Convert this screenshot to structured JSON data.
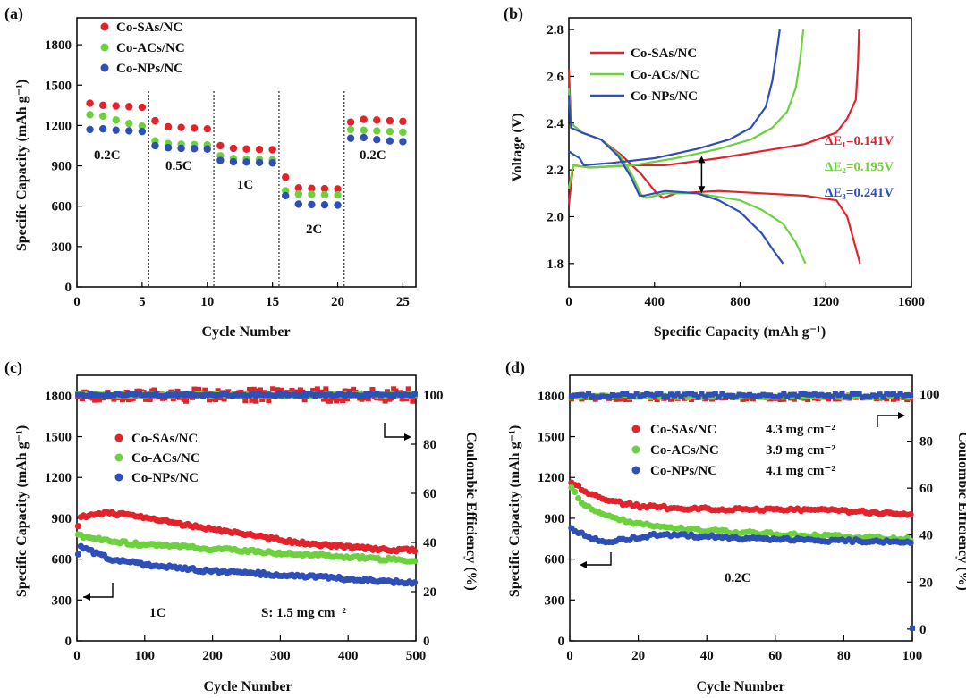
{
  "chart_data": [
    {
      "panel": "(a)",
      "type": "scatter",
      "xlabel": "Cycle Number",
      "ylabel": "Specific Capacity (mAh g⁻¹)",
      "xlim": [
        0,
        26
      ],
      "ylim": [
        0,
        2000
      ],
      "xticks": [
        0,
        5,
        10,
        15,
        20,
        25
      ],
      "yticks": [
        0,
        300,
        600,
        900,
        1200,
        1500,
        1800
      ],
      "x": [
        1,
        2,
        3,
        4,
        5,
        6,
        7,
        8,
        9,
        10,
        11,
        12,
        13,
        14,
        15,
        16,
        17,
        18,
        19,
        20,
        21,
        22,
        23,
        24,
        25
      ],
      "series": [
        {
          "name": "Co-SAs/NC",
          "color": "#e3232b",
          "values": [
            1365,
            1350,
            1345,
            1340,
            1335,
            1235,
            1190,
            1185,
            1180,
            1175,
            1050,
            1030,
            1025,
            1022,
            1020,
            815,
            735,
            732,
            730,
            728,
            1225,
            1245,
            1240,
            1235,
            1230
          ]
        },
        {
          "name": "Co-ACs/NC",
          "color": "#6dd13f",
          "values": [
            1280,
            1270,
            1240,
            1215,
            1195,
            1085,
            1065,
            1060,
            1058,
            1055,
            975,
            955,
            950,
            948,
            945,
            715,
            690,
            688,
            685,
            683,
            1170,
            1165,
            1160,
            1155,
            1150
          ]
        },
        {
          "name": "Co-NPs/NC",
          "color": "#2f4fb8",
          "values": [
            1170,
            1175,
            1165,
            1160,
            1155,
            1050,
            1035,
            1030,
            1028,
            1025,
            940,
            930,
            928,
            925,
            922,
            678,
            615,
            612,
            610,
            608,
            1105,
            1110,
            1095,
            1085,
            1080
          ]
        }
      ],
      "rate_labels": [
        "0.2C",
        "0.5C",
        "1C",
        "2C",
        "0.2C"
      ],
      "dividers": [
        5.5,
        10.5,
        15.5,
        20.5
      ]
    },
    {
      "panel": "(b)",
      "type": "line",
      "xlabel": "Specific Capacity (mAh g⁻¹)",
      "ylabel": "Voltage (V)",
      "xlim": [
        0,
        1600
      ],
      "ylim": [
        1.7,
        2.85
      ],
      "xticks": [
        0,
        400,
        800,
        1200,
        1600
      ],
      "yticks": [
        1.8,
        2.0,
        2.2,
        2.4,
        2.6,
        2.8
      ],
      "series": [
        {
          "name": "Co-SAs/NC",
          "color": "#e3232b",
          "discharge": [
            [
              0,
              2.63
            ],
            [
              10,
              2.4
            ],
            [
              60,
              2.36
            ],
            [
              150,
              2.33
            ],
            [
              250,
              2.26
            ],
            [
              340,
              2.18
            ],
            [
              410,
              2.1
            ],
            [
              440,
              2.08
            ],
            [
              500,
              2.1
            ],
            [
              700,
              2.11
            ],
            [
              900,
              2.1
            ],
            [
              1100,
              2.09
            ],
            [
              1250,
              2.07
            ],
            [
              1300,
              2.0
            ],
            [
              1330,
              1.9
            ],
            [
              1360,
              1.8
            ]
          ],
          "charge": [
            [
              0,
              2.05
            ],
            [
              20,
              2.22
            ],
            [
              100,
              2.21
            ],
            [
              300,
              2.22
            ],
            [
              450,
              2.22
            ],
            [
              700,
              2.25
            ],
            [
              900,
              2.28
            ],
            [
              1100,
              2.31
            ],
            [
              1250,
              2.36
            ],
            [
              1300,
              2.42
            ],
            [
              1340,
              2.5
            ],
            [
              1350,
              2.65
            ],
            [
              1355,
              2.8
            ]
          ]
        },
        {
          "name": "Co-ACs/NC",
          "color": "#6dd13f",
          "discharge": [
            [
              0,
              2.55
            ],
            [
              10,
              2.4
            ],
            [
              60,
              2.36
            ],
            [
              150,
              2.33
            ],
            [
              240,
              2.26
            ],
            [
              300,
              2.17
            ],
            [
              340,
              2.09
            ],
            [
              360,
              2.08
            ],
            [
              450,
              2.1
            ],
            [
              600,
              2.1
            ],
            [
              800,
              2.07
            ],
            [
              900,
              2.03
            ],
            [
              1000,
              1.97
            ],
            [
              1060,
              1.89
            ],
            [
              1105,
              1.8
            ]
          ],
          "charge": [
            [
              0,
              2.12
            ],
            [
              20,
              2.22
            ],
            [
              100,
              2.21
            ],
            [
              300,
              2.22
            ],
            [
              500,
              2.25
            ],
            [
              700,
              2.29
            ],
            [
              850,
              2.33
            ],
            [
              950,
              2.38
            ],
            [
              1020,
              2.45
            ],
            [
              1060,
              2.55
            ],
            [
              1080,
              2.67
            ],
            [
              1095,
              2.8
            ]
          ]
        },
        {
          "name": "Co-NPs/NC",
          "color": "#2f4fb8",
          "discharge": [
            [
              0,
              2.52
            ],
            [
              10,
              2.38
            ],
            [
              60,
              2.36
            ],
            [
              150,
              2.33
            ],
            [
              230,
              2.26
            ],
            [
              290,
              2.17
            ],
            [
              330,
              2.09
            ],
            [
              350,
              2.09
            ],
            [
              450,
              2.11
            ],
            [
              600,
              2.1
            ],
            [
              700,
              2.07
            ],
            [
              800,
              2.02
            ],
            [
              900,
              1.93
            ],
            [
              960,
              1.85
            ],
            [
              1000,
              1.8
            ]
          ],
          "charge": [
            [
              0,
              2.28
            ],
            [
              15,
              2.27
            ],
            [
              50,
              2.25
            ],
            [
              70,
              2.22
            ],
            [
              200,
              2.23
            ],
            [
              400,
              2.25
            ],
            [
              600,
              2.29
            ],
            [
              750,
              2.33
            ],
            [
              850,
              2.38
            ],
            [
              920,
              2.47
            ],
            [
              950,
              2.58
            ],
            [
              970,
              2.7
            ],
            [
              985,
              2.8
            ]
          ]
        }
      ],
      "annotations": [
        {
          "label": "ΔE₁=0.141V",
          "color": "#e3232b"
        },
        {
          "label": "ΔE₂=0.195V",
          "color": "#6dd13f"
        },
        {
          "label": "ΔE₃=0.241V",
          "color": "#2f4fb8"
        }
      ]
    },
    {
      "panel": "(c)",
      "type": "scatter",
      "xlabel": "Cycle Number",
      "ylabel": "Specific Capacity (mAh g⁻¹)",
      "y2label": "Coulombic Efficiency (%)",
      "xlim": [
        0,
        500
      ],
      "ylim": [
        0,
        1950
      ],
      "y2lim": [
        0,
        108
      ],
      "xticks": [
        0,
        100,
        200,
        300,
        400,
        500
      ],
      "yticks": [
        0,
        300,
        600,
        900,
        1200,
        1500,
        1800
      ],
      "y2ticks": [
        0,
        20,
        40,
        60,
        80,
        100
      ],
      "series": [
        {
          "name": "Co-SAs/NC",
          "color": "#e3232b",
          "x": [
            0,
            5,
            20,
            50,
            80,
            100,
            150,
            200,
            250,
            300,
            350,
            400,
            450,
            500
          ],
          "values": [
            820,
            900,
            930,
            935,
            920,
            900,
            860,
            820,
            780,
            740,
            710,
            690,
            670,
            665
          ]
        },
        {
          "name": "Co-ACs/NC",
          "color": "#6dd13f",
          "x": [
            0,
            5,
            20,
            50,
            100,
            150,
            200,
            250,
            300,
            350,
            400,
            450,
            500
          ],
          "values": [
            780,
            770,
            755,
            730,
            705,
            690,
            675,
            660,
            645,
            630,
            615,
            600,
            590
          ]
        },
        {
          "name": "Co-NPs/NC",
          "color": "#2f4fb8",
          "x": [
            0,
            5,
            20,
            50,
            100,
            150,
            200,
            250,
            300,
            350,
            400,
            450,
            500
          ],
          "values": [
            600,
            700,
            660,
            600,
            560,
            535,
            510,
            500,
            485,
            470,
            455,
            440,
            425
          ]
        }
      ],
      "ce_series": [
        {
          "name": "Co-SAs/NC",
          "color": "#e3232b",
          "mean": 100,
          "scatter": 2.5
        },
        {
          "name": "Co-ACs/NC",
          "color": "#6dd13f",
          "mean": 100,
          "scatter": 0.6
        },
        {
          "name": "Co-NPs/NC",
          "color": "#2f4fb8",
          "mean": 100,
          "scatter": 0.5
        }
      ],
      "annotations": [
        "1C",
        "S: 1.5 mg cm⁻²"
      ]
    },
    {
      "panel": "(d)",
      "type": "scatter",
      "xlabel": "Cycle Number",
      "ylabel": "Specific Capacity (mAh g⁻¹)",
      "y2label": "Coulombic Efficiency (%)",
      "xlim": [
        0,
        100
      ],
      "ylim": [
        0,
        1950
      ],
      "y2lim": [
        -5,
        108
      ],
      "xticks": [
        0,
        20,
        40,
        60,
        80,
        100
      ],
      "yticks": [
        0,
        300,
        600,
        900,
        1200,
        1500,
        1800
      ],
      "y2ticks": [
        0,
        20,
        40,
        60,
        80,
        100
      ],
      "series": [
        {
          "name": "Co-SAs/NC",
          "loading": "4.3 mg cm⁻²",
          "color": "#e3232b",
          "x": [
            1,
            3,
            6,
            10,
            15,
            20,
            30,
            40,
            50,
            60,
            70,
            80,
            90,
            100
          ],
          "values": [
            1160,
            1120,
            1080,
            1040,
            1010,
            990,
            975,
            970,
            965,
            968,
            962,
            955,
            940,
            930
          ]
        },
        {
          "name": "Co-ACs/NC",
          "loading": "3.9 mg cm⁻²",
          "color": "#6dd13f",
          "x": [
            1,
            3,
            6,
            10,
            15,
            20,
            30,
            40,
            50,
            60,
            70,
            80,
            90,
            100
          ],
          "values": [
            1120,
            1030,
            980,
            930,
            890,
            860,
            830,
            810,
            795,
            785,
            775,
            765,
            755,
            745
          ]
        },
        {
          "name": "Co-NPs/NC",
          "loading": "4.1 mg cm⁻²",
          "color": "#2f4fb8",
          "x": [
            1,
            3,
            6,
            10,
            15,
            20,
            25,
            30,
            40,
            50,
            60,
            70,
            80,
            90,
            100
          ],
          "values": [
            820,
            790,
            760,
            730,
            740,
            760,
            780,
            775,
            765,
            755,
            745,
            740,
            735,
            730,
            725
          ]
        }
      ],
      "ce_series": [
        {
          "name": "Co-SAs/NC",
          "color": "#e3232b",
          "mean": 98.5,
          "scatter": 0.8
        },
        {
          "name": "Co-ACs/NC",
          "color": "#6dd13f",
          "mean": 99,
          "scatter": 0.6
        },
        {
          "name": "Co-NPs/NC",
          "color": "#2f4fb8",
          "mean": 99.5,
          "scatter": 0.8
        }
      ],
      "annotations": [
        "0.2C"
      ]
    }
  ]
}
